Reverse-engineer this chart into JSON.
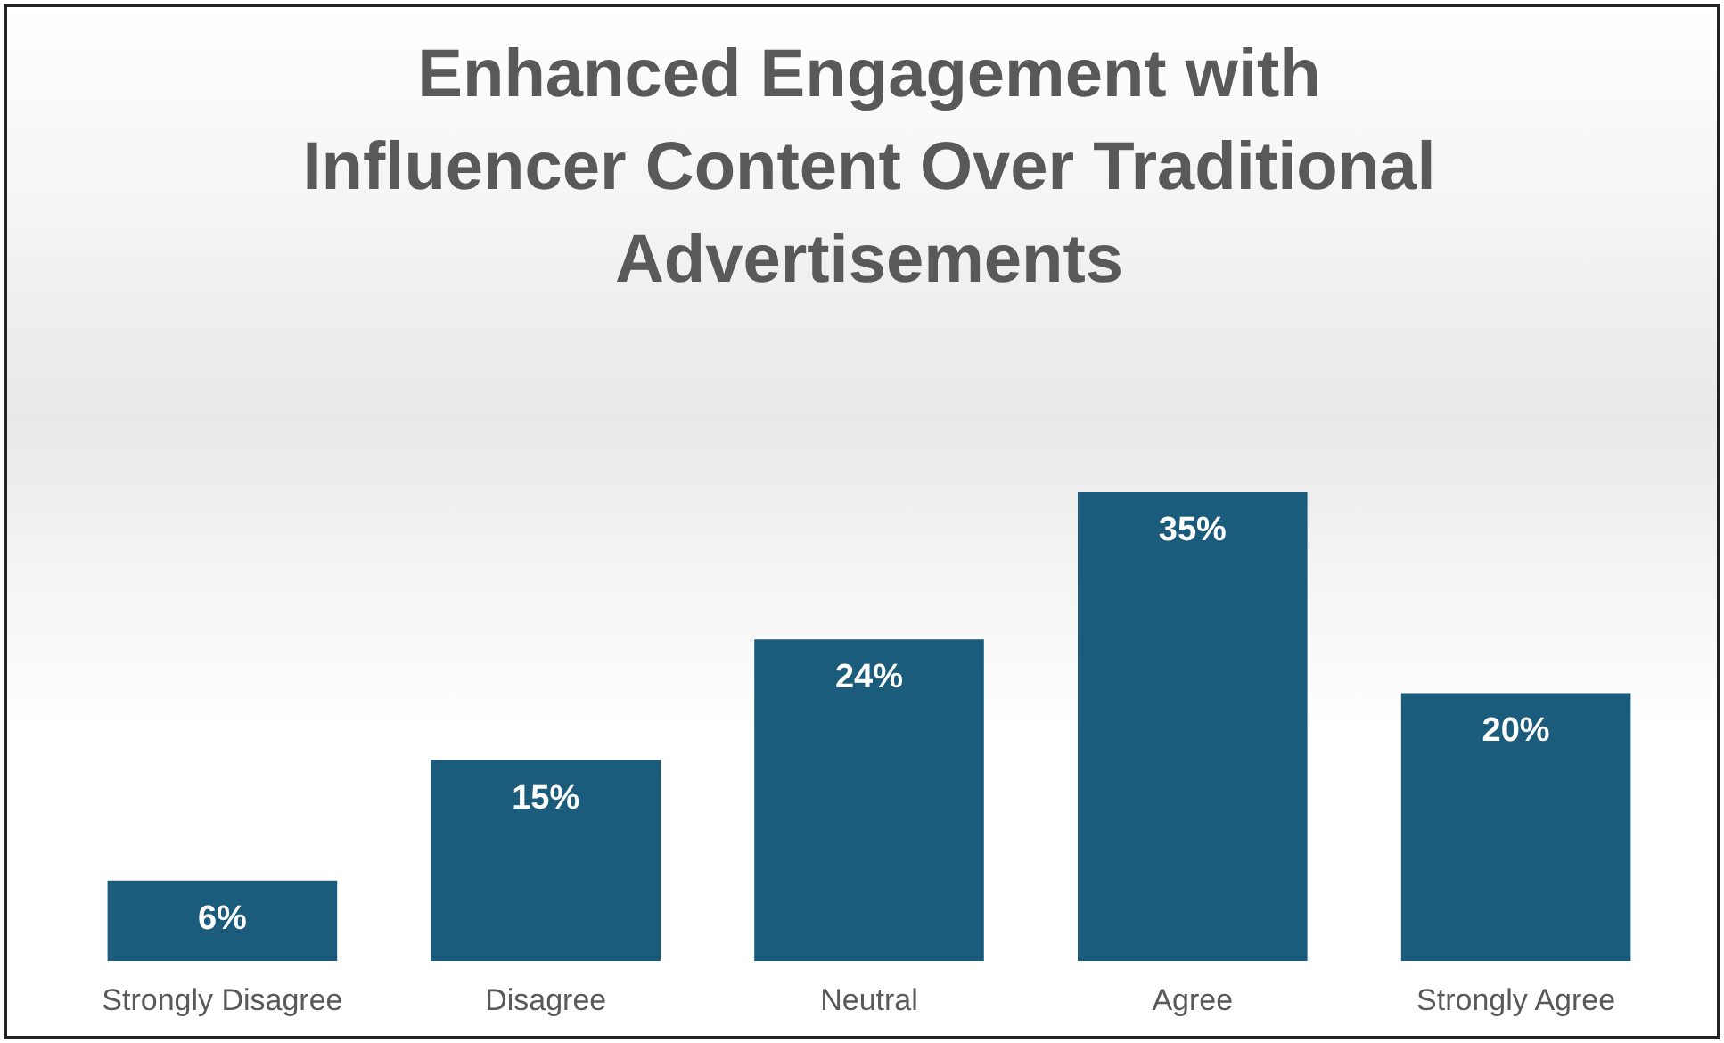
{
  "chart_data": {
    "type": "bar",
    "title": "Enhanced Engagement with Influencer Content Over Traditional Advertisements",
    "categories": [
      "Strongly Disagree",
      "Disagree",
      "Neutral",
      "Agree",
      "Strongly Agree"
    ],
    "values": [
      6,
      15,
      24,
      35,
      20
    ],
    "value_labels": [
      "6%",
      "15%",
      "24%",
      "35%",
      "20%"
    ],
    "color": "#1b5b7c",
    "grid": false
  }
}
